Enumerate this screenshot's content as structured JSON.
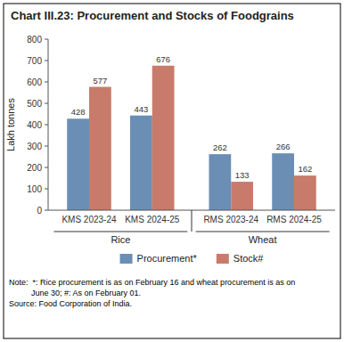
{
  "chart_data": {
    "type": "bar",
    "title": "Chart III.23: Procurement and Stocks of Foodgrains",
    "y_label": "Lakh tonnes",
    "categories": [
      "KMS 2023-24",
      "KMS 2024-25",
      "RMS 2023-24",
      "RMS 2024-25"
    ],
    "group_labels": [
      "Rice",
      "Wheat"
    ],
    "series": [
      {
        "name": "Procurement*",
        "color": "#6b8eb5",
        "values": [
          428,
          443,
          262,
          266
        ]
      },
      {
        "name": "Stock#",
        "color": "#c87b6b",
        "values": [
          577,
          676,
          133,
          162
        ]
      }
    ],
    "ylim": [
      0,
      800
    ],
    "yticks": [
      0,
      100,
      200,
      300,
      400,
      500,
      600,
      700,
      800
    ],
    "grid": false,
    "legend": "bottom",
    "data_labels": true,
    "notes": [
      "Note:  *: Rice procurement is as on February 16 and wheat procurement is as on",
      "          June 30; #: As on February 01.",
      "Source: Food Corporation of India."
    ]
  }
}
